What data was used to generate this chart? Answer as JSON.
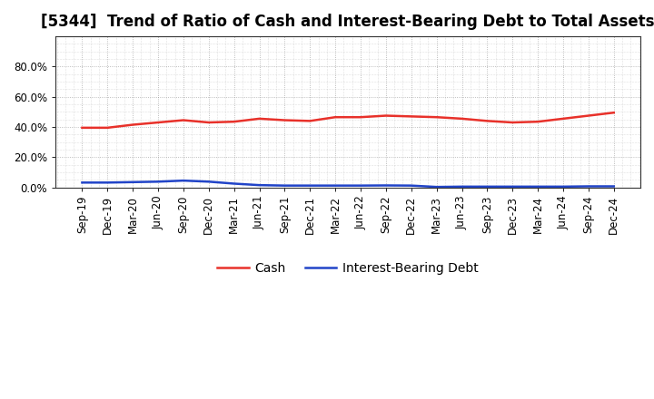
{
  "title": "[5344]  Trend of Ratio of Cash and Interest-Bearing Debt to Total Assets",
  "x_labels": [
    "Sep-19",
    "Dec-19",
    "Mar-20",
    "Jun-20",
    "Sep-20",
    "Dec-20",
    "Mar-21",
    "Jun-21",
    "Sep-21",
    "Dec-21",
    "Mar-22",
    "Jun-22",
    "Sep-22",
    "Dec-22",
    "Mar-23",
    "Jun-23",
    "Sep-23",
    "Dec-23",
    "Mar-24",
    "Jun-24",
    "Sep-24",
    "Dec-24"
  ],
  "cash": [
    39.5,
    39.5,
    41.5,
    43.0,
    44.5,
    43.0,
    43.5,
    45.5,
    44.5,
    44.0,
    46.5,
    46.5,
    47.5,
    47.0,
    46.5,
    45.5,
    44.0,
    43.0,
    43.5,
    45.5,
    47.5,
    49.5
  ],
  "ibd": [
    3.2,
    3.2,
    3.5,
    3.8,
    4.5,
    3.8,
    2.5,
    1.5,
    1.2,
    1.2,
    1.2,
    1.2,
    1.3,
    1.2,
    0.3,
    0.5,
    0.5,
    0.5,
    0.5,
    0.5,
    0.7,
    0.7
  ],
  "cash_color": "#e8312a",
  "ibd_color": "#2144c8",
  "background_color": "#ffffff",
  "plot_bg_color": "#ffffff",
  "grid_color": "#888888",
  "ylim": [
    0,
    100
  ],
  "yticks": [
    0,
    20,
    40,
    60,
    80
  ],
  "ytick_labels": [
    "0.0%",
    "20.0%",
    "40.0%",
    "60.0%",
    "80.0%"
  ],
  "legend_cash": "Cash",
  "legend_ibd": "Interest-Bearing Debt",
  "title_fontsize": 12,
  "axis_fontsize": 8.5,
  "legend_fontsize": 10,
  "line_width": 1.8
}
